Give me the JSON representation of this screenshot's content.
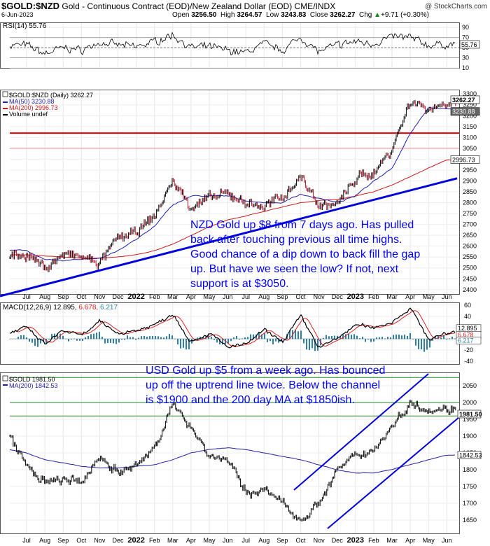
{
  "header": {
    "symbol": "$GOLD:$NZD",
    "description": "Gold - Continuous Contract (EOD)/New Zealand Dollar (EOD) CME/INDX",
    "date": "6-Jun-2023",
    "open_label": "Open",
    "open": "3256.50",
    "high_label": "High",
    "high": "3264.57",
    "low_label": "Low",
    "low": "3243.83",
    "close_label": "Close",
    "close": "3262.27",
    "chg_label": "Chg",
    "chg": "+9.71 (+0.30%)",
    "chg_arrow": "▲",
    "watermark": "@ StockCharts.com"
  },
  "colors": {
    "price": "#000000",
    "ma50": "#1f1fa8",
    "ma200": "#cc1a1a",
    "support": "#dd0000",
    "trend": "#0000dd",
    "annotation": "#0000ff",
    "macd_hist": "#2e7fa5",
    "badge": "#555555"
  },
  "x_months": [
    "Jul",
    "Aug",
    "Sep",
    "Oct",
    "Nov",
    "Dec",
    "2022",
    "Feb",
    "Mar",
    "Apr",
    "May",
    "Jun",
    "Jul",
    "Aug",
    "Sep",
    "Oct",
    "Nov",
    "Dec",
    "2023",
    "Feb",
    "Mar",
    "Apr",
    "May",
    "Jun"
  ],
  "bold_months": [
    "2022",
    "2023"
  ],
  "rsi_panel": {
    "label": "RSI(14) 55.76",
    "value_badge": "55.76",
    "ticks": [
      "90",
      "70",
      "50",
      "30",
      "10"
    ]
  },
  "nzd_panel": {
    "legend": [
      {
        "text": "$GOLD:$NZD (Daily) 3262.27",
        "color": "#000000"
      },
      {
        "text": "MA(50) 3230.88",
        "color": "#1f1fa8"
      },
      {
        "text": "MA(200) 2996.73",
        "color": "#cc1a1a"
      },
      {
        "text": "Volume undef",
        "color": "#000000"
      }
    ],
    "badges": [
      "3262.27",
      "3230.88",
      "2996.73"
    ],
    "ticks": [
      "3300",
      "3250",
      "3200",
      "3150",
      "3100",
      "3050",
      "3000",
      "2950",
      "2900",
      "2850",
      "2800",
      "2750",
      "2700",
      "2650",
      "2600",
      "2550",
      "2500",
      "2450",
      "2400"
    ],
    "annotation": [
      "NZD Gold up $8 from 7 days ago. Has pulled",
      "back after touching previous all time highs.",
      "Good chance of a dip down to back fill the gap",
      "up. But have we seen the low? If not, next",
      "support is at $3050."
    ]
  },
  "macd_panel": {
    "label_prefix": "MACD(12,26,9) 12.895,",
    "label_signal": "6.678,",
    "label_hist": "6.217",
    "badges": [
      "12.895",
      "6.678",
      "6.217"
    ],
    "ticks": [
      "60",
      "40",
      "20",
      "0",
      "-20",
      "-40"
    ]
  },
  "usd_panel": {
    "legend": [
      {
        "text": "$GOLD 1981.50",
        "color": "#000000"
      },
      {
        "text": "MA(200) 1842.53",
        "color": "#1f1fa8"
      }
    ],
    "badges": [
      "1981.50",
      "1842.53"
    ],
    "ticks": [
      "2050",
      "2000",
      "1950",
      "1900",
      "1850",
      "1800",
      "1750",
      "1700",
      "1650"
    ],
    "annotation": [
      "USD Gold up $5 from a week ago. Has bounced",
      "up off the uptrend line twice. Below the channel",
      "is $1900 and the 200 day MA at $1850ish."
    ]
  },
  "chart_data": [
    {
      "type": "line",
      "title": "RSI(14) 55.76",
      "ylim": [
        10,
        100
      ],
      "reference_lines": [
        30,
        70
      ],
      "last": 55.76,
      "approx_series": [
        {
          "name": "RSI(14)",
          "x": [
            "Jul",
            "Aug",
            "Sep",
            "Oct",
            "Nov",
            "Dec",
            "2022",
            "Feb",
            "Mar",
            "Apr",
            "May",
            "Jun",
            "Jul",
            "Aug",
            "Sep",
            "Oct",
            "Nov",
            "Dec",
            "2023",
            "Feb",
            "Mar",
            "Apr",
            "May",
            "Jun"
          ],
          "values": [
            55,
            38,
            50,
            45,
            60,
            55,
            52,
            62,
            75,
            50,
            52,
            45,
            40,
            58,
            45,
            70,
            42,
            55,
            62,
            58,
            72,
            70,
            55,
            56
          ]
        }
      ]
    },
    {
      "type": "line",
      "title": "$GOLD:$NZD (Daily) 3262.27",
      "ylim": [
        2380,
        3320
      ],
      "last": 3262.27,
      "series": [
        {
          "name": "$GOLD:$NZD",
          "x": [
            "Jul",
            "Aug",
            "Sep",
            "Oct",
            "Nov",
            "Dec",
            "2022",
            "Feb",
            "Mar",
            "Apr",
            "May",
            "Jun",
            "Jul",
            "Aug",
            "Sep",
            "Oct",
            "Nov",
            "Dec",
            "2023",
            "Feb",
            "Mar",
            "Apr",
            "May",
            "Jun"
          ],
          "values": [
            2560,
            2500,
            2560,
            2550,
            2520,
            2640,
            2660,
            2740,
            2900,
            2780,
            2820,
            2840,
            2800,
            2780,
            2830,
            2920,
            2790,
            2790,
            2910,
            2940,
            3050,
            3270,
            3230,
            3262
          ]
        },
        {
          "name": "MA(50)",
          "x": [
            "Jul",
            "Aug",
            "Sep",
            "Oct",
            "Nov",
            "Dec",
            "2022",
            "Feb",
            "Mar",
            "Apr",
            "May",
            "Jun",
            "Jul",
            "Aug",
            "Sep",
            "Oct",
            "Nov",
            "Dec",
            "2023",
            "Feb",
            "Mar",
            "Apr",
            "May",
            "Jun"
          ],
          "values": [
            2580,
            2540,
            2530,
            2540,
            2545,
            2580,
            2630,
            2690,
            2790,
            2830,
            2830,
            2830,
            2810,
            2800,
            2800,
            2840,
            2820,
            2800,
            2830,
            2900,
            2960,
            3120,
            3240,
            3230
          ]
        },
        {
          "name": "MA(200)",
          "x": [
            "Jul",
            "Aug",
            "Sep",
            "Oct",
            "Nov",
            "Dec",
            "2022",
            "Feb",
            "Mar",
            "Apr",
            "May",
            "Jun",
            "Jul",
            "Aug",
            "Sep",
            "Oct",
            "Nov",
            "Dec",
            "2023",
            "Feb",
            "Mar",
            "Apr",
            "May",
            "Jun"
          ],
          "values": [
            2560,
            2555,
            2550,
            2545,
            2545,
            2550,
            2560,
            2580,
            2610,
            2650,
            2690,
            2720,
            2740,
            2760,
            2780,
            2800,
            2810,
            2815,
            2830,
            2850,
            2880,
            2920,
            2960,
            2997
          ]
        }
      ],
      "support_levels": [
        3120,
        3050
      ],
      "trendline": {
        "from": [
          "start",
          2380
        ],
        "to": [
          "Jun",
          2910
        ]
      }
    },
    {
      "type": "line",
      "title": "MACD(12,26,9) 12.895, 6.678, 6.217",
      "ylim": [
        -45,
        65
      ],
      "series": [
        {
          "name": "MACD",
          "last": 12.895
        },
        {
          "name": "Signal",
          "last": 6.678
        },
        {
          "name": "Histogram",
          "last": 6.217
        }
      ]
    },
    {
      "type": "line",
      "title": "$GOLD 1981.50",
      "ylim": [
        1610,
        2090
      ],
      "last": 1981.5,
      "series": [
        {
          "name": "$GOLD",
          "x": [
            "Jul",
            "Aug",
            "Sep",
            "Oct",
            "Nov",
            "Dec",
            "2022",
            "Feb",
            "Mar",
            "Apr",
            "May",
            "Jun",
            "Jul",
            "Aug",
            "Sep",
            "Oct",
            "Nov",
            "Dec",
            "2023",
            "Feb",
            "Mar",
            "Apr",
            "May",
            "Jun"
          ],
          "values": [
            1810,
            1760,
            1770,
            1760,
            1840,
            1790,
            1810,
            1870,
            1990,
            1930,
            1840,
            1830,
            1730,
            1740,
            1700,
            1650,
            1700,
            1800,
            1840,
            1860,
            1930,
            2000,
            1980,
            1981
          ]
        },
        {
          "name": "MA(200)",
          "x": [
            "Jul",
            "Aug",
            "Sep",
            "Oct",
            "Nov",
            "Dec",
            "2022",
            "Feb",
            "Mar",
            "Apr",
            "May",
            "Jun",
            "Jul",
            "Aug",
            "Sep",
            "Oct",
            "Nov",
            "Dec",
            "2023",
            "Feb",
            "Mar",
            "Apr",
            "May",
            "Jun"
          ],
          "values": [
            1850,
            1830,
            1820,
            1810,
            1805,
            1805,
            1810,
            1815,
            1830,
            1850,
            1860,
            1865,
            1860,
            1850,
            1840,
            1830,
            1815,
            1800,
            1790,
            1790,
            1800,
            1815,
            1830,
            1843
          ]
        }
      ],
      "reference_levels": [
        2075,
        2000,
        1960
      ]
    }
  ]
}
